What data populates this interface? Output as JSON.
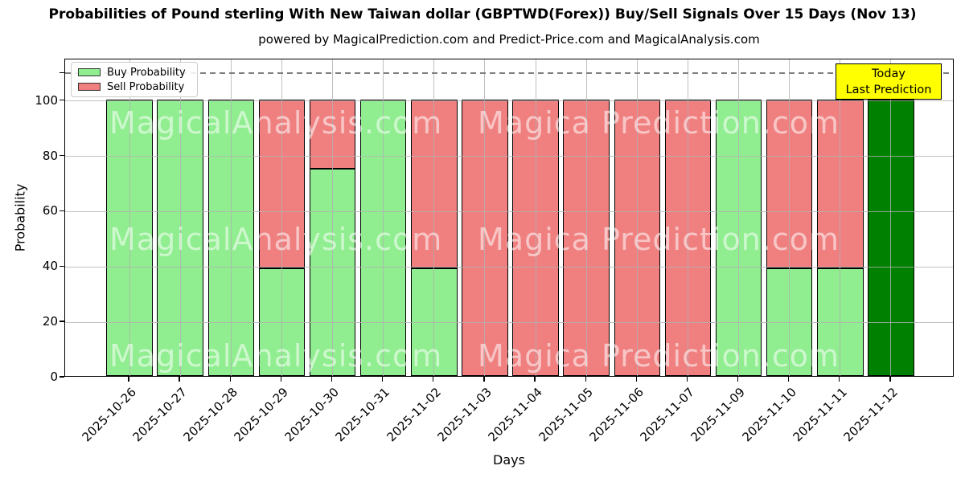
{
  "title": "Probabilities of Pound sterling With New Taiwan dollar (GBPTWD(Forex)) Buy/Sell Signals Over 15 Days (Nov 13)",
  "subtitle": "powered by MagicalPrediction.com and Predict-Price.com and MagicalAnalysis.com",
  "legend": {
    "items": [
      {
        "label": "Buy Probability",
        "color": "#90ee90"
      },
      {
        "label": "Sell Probability",
        "color": "#f08080"
      }
    ]
  },
  "annotation": {
    "line1": "Today",
    "line2": "Last Prediction",
    "bg_color": "#ffff00"
  },
  "watermarks": {
    "left": "MagicalAnalysis.com",
    "right": "Magica Prediction.com"
  },
  "axes": {
    "x_label": "Days",
    "y_label": "Probability",
    "y_ticks": [
      0,
      20,
      40,
      60,
      80,
      100
    ],
    "y_max": 115,
    "dashed_line_value": 110,
    "grid": true
  },
  "colors": {
    "buy": "#90ee90",
    "sell": "#f08080",
    "today": "#008000",
    "edge": "#000000",
    "grid": "#b0b0b0",
    "dashed_line": "#7f7f7f",
    "annotation_bg": "#ffff00",
    "background": "#ffffff"
  },
  "chart_data": {
    "type": "bar",
    "stacked": true,
    "title": "Probabilities of Pound sterling With New Taiwan dollar (GBPTWD(Forex)) Buy/Sell Signals Over 15 Days (Nov 13)",
    "xlabel": "Days",
    "ylabel": "Probability",
    "ylim": [
      0,
      115
    ],
    "dashed_guide_y": 110,
    "legend_position": "upper left",
    "grid": true,
    "categories": [
      "2025-10-26",
      "2025-10-27",
      "2025-10-28",
      "2025-10-29",
      "2025-10-30",
      "2025-10-31",
      "2025-11-02",
      "2025-11-03",
      "2025-11-04",
      "2025-11-05",
      "2025-11-06",
      "2025-11-07",
      "2025-11-09",
      "2025-11-10",
      "2025-11-11",
      "2025-11-12"
    ],
    "series": [
      {
        "name": "Buy Probability",
        "color": "#90ee90",
        "values": [
          100,
          100,
          100,
          39,
          75,
          100,
          39,
          0,
          0,
          0,
          0,
          0,
          100,
          39,
          39,
          100
        ]
      },
      {
        "name": "Sell Probability",
        "color": "#f08080",
        "values": [
          0,
          0,
          0,
          61,
          25,
          0,
          61,
          100,
          100,
          100,
          100,
          100,
          0,
          61,
          61,
          0
        ]
      }
    ],
    "today_index": 15,
    "today_color": "#008000"
  }
}
